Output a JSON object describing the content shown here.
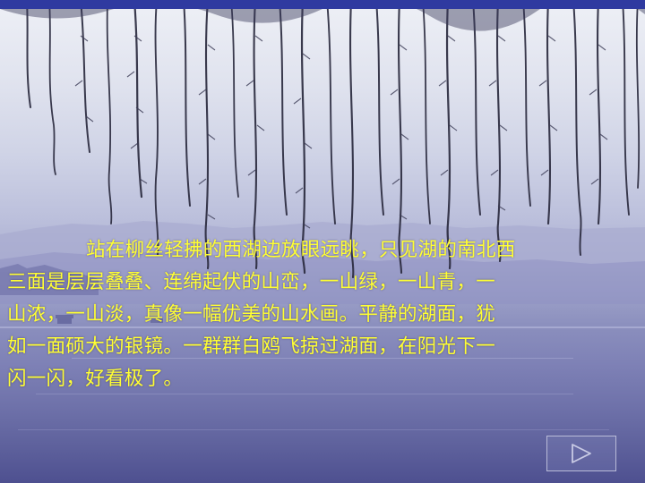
{
  "slide": {
    "paragraph_lines": [
      "站在柳丝轻拂的西湖边放眼远眺，只见湖的南北西",
      "三面是层层叠叠、连绵起伏的山峦，一山绿，一山青，一",
      "山浓，一山淡，真像一幅优美的山水画。平静的湖面，犹",
      "如一面硕大的银镜。一群群白鸥飞掠过湖面，在阳光下一",
      "闪一闪，好看极了。"
    ],
    "text_color": "#ffff33",
    "next_button": {
      "icon": "play-triangle-icon"
    }
  }
}
